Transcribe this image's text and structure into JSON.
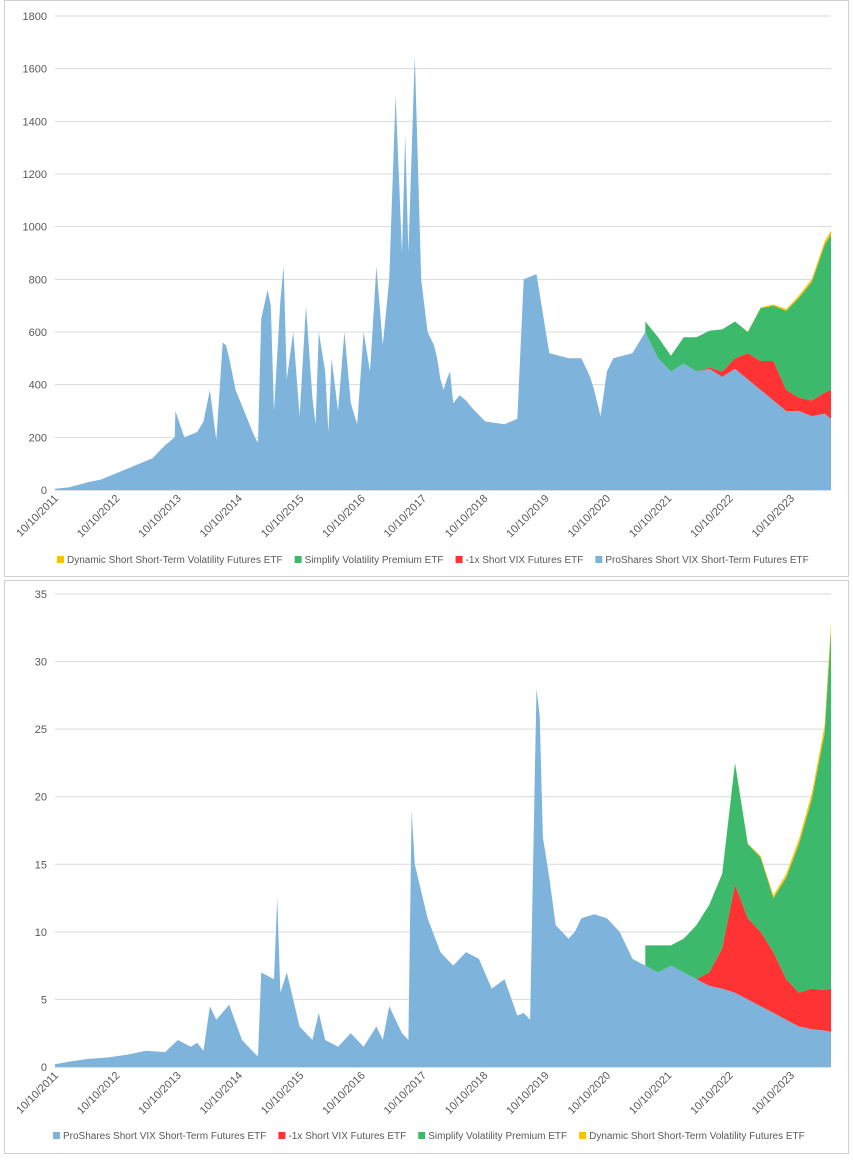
{
  "chart_data": [
    {
      "type": "area",
      "stacked": true,
      "title": "",
      "xlabel": "",
      "ylabel": "",
      "ylim": [
        0,
        1800
      ],
      "yticks": [
        0,
        200,
        400,
        600,
        800,
        1000,
        1200,
        1400,
        1600,
        1800
      ],
      "x_tick_labels": [
        "10/10/2011",
        "10/10/2012",
        "10/10/2013",
        "10/10/2014",
        "10/10/2015",
        "10/10/2016",
        "10/10/2017",
        "10/10/2018",
        "10/10/2019",
        "10/10/2020",
        "10/10/2021",
        "10/10/2022",
        "10/10/2023"
      ],
      "xlim": [
        2011.78,
        2023.9
      ],
      "grid": true,
      "legend_position": "bottom",
      "legend": [
        {
          "name": "Dynamic Short Short-Term Volatility Futures ETF",
          "color": "#ffc000"
        },
        {
          "name": "Simplify Volatility Premium ETF",
          "color": "#3cb96a"
        },
        {
          "name": "-1x Short VIX Futures ETF",
          "color": "#ff3333"
        },
        {
          "name": "ProShares Short VIX Short-Term Futures ETF",
          "color": "#7eb4dc"
        }
      ],
      "stack_order": [
        "ProShares Short VIX Short-Term Futures ETF",
        "-1x Short VIX Futures ETF",
        "Simplify Volatility Premium ETF",
        "Dynamic Short Short-Term Volatility Futures ETF"
      ],
      "series": [
        {
          "name": "ProShares Short VIX Short-Term Futures ETF",
          "color": "#7eb4dc",
          "x": [
            2011.78,
            2012.0,
            2012.3,
            2012.5,
            2012.8,
            2013.0,
            2013.3,
            2013.5,
            2013.65,
            2013.66,
            2013.8,
            2014.0,
            2014.1,
            2014.2,
            2014.3,
            2014.4,
            2014.45,
            2014.5,
            2014.6,
            2014.8,
            2014.9,
            2014.95,
            2015.0,
            2015.1,
            2015.15,
            2015.2,
            2015.3,
            2015.35,
            2015.4,
            2015.5,
            2015.6,
            2015.7,
            2015.8,
            2015.85,
            2015.9,
            2016.0,
            2016.05,
            2016.1,
            2016.2,
            2016.3,
            2016.4,
            2016.5,
            2016.6,
            2016.7,
            2016.8,
            2016.9,
            2017.0,
            2017.1,
            2017.2,
            2017.25,
            2017.3,
            2017.4,
            2017.5,
            2017.55,
            2017.6,
            2017.7,
            2017.75,
            2017.8,
            2017.85,
            2017.9,
            2017.95,
            2018.0,
            2018.1,
            2018.2,
            2018.3,
            2018.5,
            2018.8,
            2019.0,
            2019.1,
            2019.3,
            2019.5,
            2019.8,
            2020.0,
            2020.1,
            2020.15,
            2020.2,
            2020.3,
            2020.4,
            2020.5,
            2020.8,
            2021.0,
            2021.2,
            2021.4,
            2021.6,
            2021.8,
            2022.0,
            2022.2,
            2022.4,
            2022.6,
            2022.8,
            2023.0,
            2023.2,
            2023.4,
            2023.6,
            2023.8,
            2023.9
          ],
          "values": [
            5,
            10,
            30,
            40,
            70,
            90,
            120,
            170,
            200,
            300,
            200,
            220,
            260,
            380,
            190,
            560,
            550,
            500,
            380,
            260,
            200,
            180,
            650,
            760,
            700,
            300,
            720,
            850,
            420,
            600,
            280,
            700,
            350,
            250,
            600,
            450,
            220,
            500,
            300,
            600,
            330,
            250,
            600,
            450,
            850,
            550,
            800,
            1500,
            900,
            1350,
            900,
            1650,
            800,
            700,
            600,
            550,
            500,
            420,
            380,
            420,
            450,
            330,
            360,
            340,
            310,
            260,
            250,
            270,
            800,
            820,
            520,
            500,
            500,
            450,
            420,
            380,
            280,
            450,
            500,
            520,
            600,
            500,
            450,
            480,
            450,
            460,
            430,
            460,
            420,
            380,
            340,
            300,
            300,
            280,
            290,
            270
          ]
        },
        {
          "name": "-1x Short VIX Futures ETF",
          "color": "#ff3333",
          "x": [
            2021.8,
            2022.0,
            2022.2,
            2022.4,
            2022.6,
            2022.8,
            2023.0,
            2023.2,
            2023.4,
            2023.6,
            2023.8,
            2023.9
          ],
          "values": [
            0,
            5,
            20,
            40,
            100,
            110,
            150,
            80,
            50,
            60,
            80,
            110
          ]
        },
        {
          "name": "Simplify Volatility Premium ETF",
          "color": "#3cb96a",
          "x": [
            2021.0,
            2021.2,
            2021.4,
            2021.6,
            2021.8,
            2022.0,
            2022.2,
            2022.4,
            2022.6,
            2022.8,
            2023.0,
            2023.2,
            2023.4,
            2023.6,
            2023.8,
            2023.9
          ],
          "values": [
            40,
            80,
            60,
            100,
            130,
            140,
            160,
            140,
            80,
            200,
            210,
            300,
            380,
            450,
            560,
            590
          ]
        },
        {
          "name": "Dynamic Short Short-Term Volatility Futures ETF",
          "color": "#ffc000",
          "x": [
            2022.5,
            2023.0,
            2023.5,
            2023.9
          ],
          "values": [
            0,
            5,
            10,
            15
          ]
        }
      ]
    },
    {
      "type": "area",
      "stacked": true,
      "title": "",
      "xlabel": "",
      "ylabel": "",
      "ylim": [
        0,
        35
      ],
      "yticks": [
        0,
        5,
        10,
        15,
        20,
        25,
        30,
        35
      ],
      "x_tick_labels": [
        "10/10/2011",
        "10/10/2012",
        "10/10/2013",
        "10/10/2014",
        "10/10/2015",
        "10/10/2016",
        "10/10/2017",
        "10/10/2018",
        "10/10/2019",
        "10/10/2020",
        "10/10/2021",
        "10/10/2022",
        "10/10/2023"
      ],
      "xlim": [
        2011.78,
        2023.9
      ],
      "grid": true,
      "legend_position": "bottom",
      "legend": [
        {
          "name": "ProShares Short VIX Short-Term Futures ETF",
          "color": "#7eb4dc"
        },
        {
          "name": "-1x Short VIX Futures ETF",
          "color": "#ff3333"
        },
        {
          "name": "Simplify Volatility Premium ETF",
          "color": "#3cb96a"
        },
        {
          "name": "Dynamic Short Short-Term Volatility Futures ETF",
          "color": "#ffc000"
        }
      ],
      "stack_order": [
        "ProShares Short VIX Short-Term Futures ETF",
        "-1x Short VIX Futures ETF",
        "Simplify Volatility Premium ETF",
        "Dynamic Short Short-Term Volatility Futures ETF"
      ],
      "series": [
        {
          "name": "ProShares Short VIX Short-Term Futures ETF",
          "color": "#7eb4dc",
          "x": [
            2011.78,
            2012.0,
            2012.3,
            2012.6,
            2012.9,
            2013.2,
            2013.5,
            2013.7,
            2013.9,
            2014.0,
            2014.1,
            2014.2,
            2014.3,
            2014.5,
            2014.7,
            2014.9,
            2014.95,
            2015.0,
            2015.2,
            2015.25,
            2015.3,
            2015.4,
            2015.5,
            2015.6,
            2015.8,
            2015.9,
            2016.0,
            2016.2,
            2016.4,
            2016.6,
            2016.8,
            2016.9,
            2017.0,
            2017.2,
            2017.3,
            2017.35,
            2017.4,
            2017.5,
            2017.6,
            2017.8,
            2018.0,
            2018.2,
            2018.4,
            2018.6,
            2018.8,
            2019.0,
            2019.1,
            2019.2,
            2019.3,
            2019.35,
            2019.4,
            2019.5,
            2019.6,
            2019.8,
            2019.9,
            2020.0,
            2020.2,
            2020.4,
            2020.6,
            2020.8,
            2021.0,
            2021.2,
            2021.4,
            2021.6,
            2021.8,
            2022.0,
            2022.2,
            2022.4,
            2022.6,
            2022.8,
            2023.0,
            2023.2,
            2023.4,
            2023.6,
            2023.8,
            2023.9
          ],
          "values": [
            0.2,
            0.4,
            0.6,
            0.7,
            0.9,
            1.2,
            1.1,
            2.0,
            1.5,
            1.8,
            1.2,
            4.5,
            3.5,
            4.6,
            2.0,
            1.0,
            0.8,
            7.0,
            6.5,
            12.5,
            5.5,
            7.0,
            5.0,
            3.0,
            2.0,
            4.0,
            2.0,
            1.5,
            2.5,
            1.5,
            3.0,
            2.0,
            4.5,
            2.5,
            2.0,
            19.0,
            15.0,
            13.0,
            11.0,
            8.5,
            7.5,
            8.5,
            8.0,
            5.8,
            6.5,
            3.8,
            4.0,
            3.5,
            28.0,
            26.0,
            17.0,
            14.0,
            10.5,
            9.5,
            10.0,
            11.0,
            11.3,
            11.0,
            10.0,
            8.0,
            7.5,
            7.0,
            7.5,
            7.0,
            6.5,
            6.0,
            5.8,
            5.5,
            5.0,
            4.5,
            4.0,
            3.5,
            3.0,
            2.8,
            2.7,
            2.6
          ]
        },
        {
          "name": "-1x Short VIX Futures ETF",
          "color": "#ff3333",
          "x": [
            2021.8,
            2022.0,
            2022.2,
            2022.4,
            2022.6,
            2022.8,
            2023.0,
            2023.2,
            2023.4,
            2023.6,
            2023.8,
            2023.9
          ],
          "values": [
            0,
            1.0,
            3.0,
            8.0,
            6.0,
            5.5,
            4.5,
            3.0,
            2.5,
            3.0,
            3.0,
            3.2
          ]
        },
        {
          "name": "Simplify Volatility Premium ETF",
          "color": "#3cb96a",
          "x": [
            2021.0,
            2021.2,
            2021.4,
            2021.6,
            2021.8,
            2022.0,
            2022.2,
            2022.4,
            2022.6,
            2022.8,
            2023.0,
            2023.2,
            2023.4,
            2023.6,
            2023.8,
            2023.9
          ],
          "values": [
            1.5,
            2.0,
            1.5,
            2.5,
            4.0,
            5.0,
            5.5,
            9.0,
            5.5,
            5.5,
            4.0,
            7.5,
            11.0,
            14.0,
            19.0,
            26.5
          ]
        },
        {
          "name": "Dynamic Short Short-Term Volatility Futures ETF",
          "color": "#ffc000",
          "x": [
            2022.5,
            2023.0,
            2023.5,
            2023.9
          ],
          "values": [
            0,
            0.2,
            0.4,
            0.6
          ]
        }
      ]
    }
  ]
}
